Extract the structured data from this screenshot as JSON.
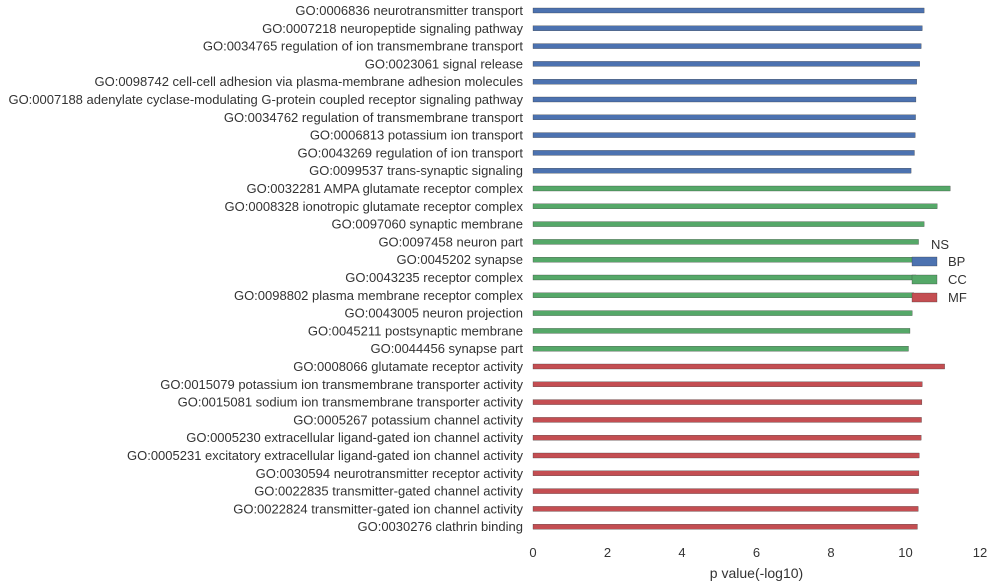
{
  "chart_data": {
    "type": "bar",
    "orientation": "horizontal",
    "xlabel": "p value(-log10)",
    "xlim": [
      0,
      12
    ],
    "xticks": [
      0,
      2,
      4,
      6,
      8,
      10,
      12
    ],
    "grid": false,
    "legend": {
      "title": "NS",
      "placement": "right",
      "entries": [
        {
          "name": "BP",
          "color": "#4C72B0"
        },
        {
          "name": "CC",
          "color": "#55A868"
        },
        {
          "name": "MF",
          "color": "#C44E52"
        }
      ]
    },
    "bars": [
      {
        "label": "GO:0006836 neurotransmitter transport",
        "value": 10.5,
        "group": "BP"
      },
      {
        "label": "GO:0007218 neuropeptide signaling pathway",
        "value": 10.45,
        "group": "BP"
      },
      {
        "label": "GO:0034765 regulation of ion transmembrane transport",
        "value": 10.42,
        "group": "BP"
      },
      {
        "label": "GO:0023061 signal release",
        "value": 10.38,
        "group": "BP"
      },
      {
        "label": "GO:0098742 cell-cell adhesion via plasma-membrane adhesion molecules",
        "value": 10.3,
        "group": "BP"
      },
      {
        "label": "GO:0007188 adenylate cyclase-modulating G-protein coupled receptor signaling pathway",
        "value": 10.28,
        "group": "BP"
      },
      {
        "label": "GO:0034762 regulation of transmembrane transport",
        "value": 10.27,
        "group": "BP"
      },
      {
        "label": "GO:0006813 potassium ion transport",
        "value": 10.26,
        "group": "BP"
      },
      {
        "label": "GO:0043269 regulation of ion transport",
        "value": 10.24,
        "group": "BP"
      },
      {
        "label": "GO:0099537 trans-synaptic signaling",
        "value": 10.15,
        "group": "BP"
      },
      {
        "label": "GO:0032281 AMPA glutamate receptor complex",
        "value": 11.2,
        "group": "CC"
      },
      {
        "label": "GO:0008328 ionotropic glutamate receptor complex",
        "value": 10.85,
        "group": "CC"
      },
      {
        "label": "GO:0097060 synaptic membrane",
        "value": 10.5,
        "group": "CC"
      },
      {
        "label": "GO:0097458 neuron part",
        "value": 10.35,
        "group": "CC"
      },
      {
        "label": "GO:0045202 synapse",
        "value": 10.3,
        "group": "CC"
      },
      {
        "label": "GO:0043235 receptor complex",
        "value": 10.28,
        "group": "CC"
      },
      {
        "label": "GO:0098802 plasma membrane receptor complex",
        "value": 10.22,
        "group": "CC"
      },
      {
        "label": "GO:0043005 neuron projection",
        "value": 10.18,
        "group": "CC"
      },
      {
        "label": "GO:0045211 postsynaptic membrane",
        "value": 10.12,
        "group": "CC"
      },
      {
        "label": "GO:0044456 synapse part",
        "value": 10.08,
        "group": "CC"
      },
      {
        "label": "GO:0008066 glutamate receptor activity",
        "value": 11.05,
        "group": "MF"
      },
      {
        "label": "GO:0015079 potassium ion transmembrane transporter activity",
        "value": 10.45,
        "group": "MF"
      },
      {
        "label": "GO:0015081 sodium ion transmembrane transporter activity",
        "value": 10.44,
        "group": "MF"
      },
      {
        "label": "GO:0005267 potassium channel activity",
        "value": 10.43,
        "group": "MF"
      },
      {
        "label": "GO:0005230 extracellular ligand-gated ion channel activity",
        "value": 10.42,
        "group": "MF"
      },
      {
        "label": "GO:0005231 excitatory extracellular ligand-gated ion channel activity",
        "value": 10.37,
        "group": "MF"
      },
      {
        "label": "GO:0030594 neurotransmitter receptor activity",
        "value": 10.36,
        "group": "MF"
      },
      {
        "label": "GO:0022835 transmitter-gated channel activity",
        "value": 10.35,
        "group": "MF"
      },
      {
        "label": "GO:0022824 transmitter-gated ion channel activity",
        "value": 10.34,
        "group": "MF"
      },
      {
        "label": "GO:0030276 clathrin binding",
        "value": 10.32,
        "group": "MF"
      }
    ]
  }
}
